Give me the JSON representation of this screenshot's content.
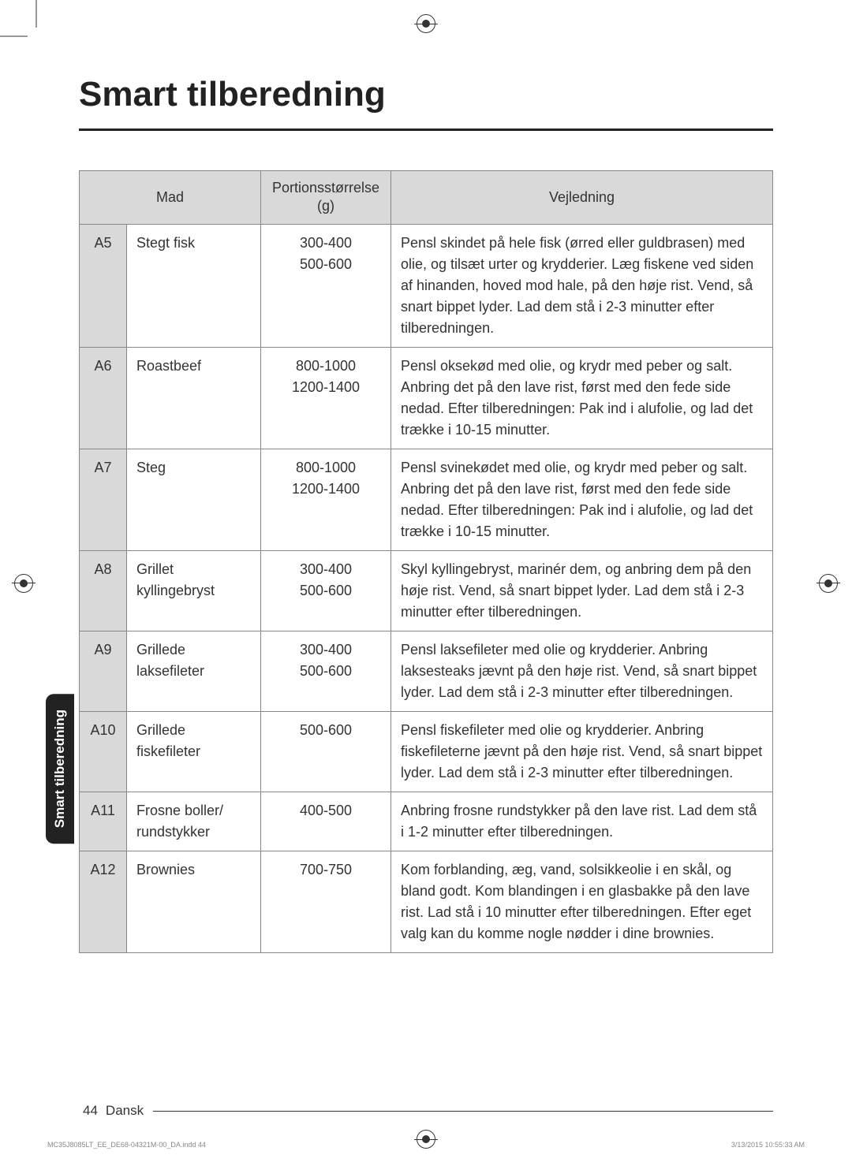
{
  "title": "Smart tilberedning",
  "sideTab": "Smart tilberedning",
  "table": {
    "headers": {
      "food": "Mad",
      "portion": "Portionsstørrelse (g)",
      "guidance": "Vejledning"
    },
    "rows": [
      {
        "code": "A5",
        "food": "Stegt fisk",
        "portion": "300-400\n500-600",
        "guidance": "Pensl skindet på hele fisk (ørred eller guldbrasen) med olie, og tilsæt urter og krydderier. Læg fiskene ved siden af hinanden, hoved mod hale, på den høje rist. Vend, så snart bippet lyder. Lad dem stå i 2-3 minutter efter tilberedningen."
      },
      {
        "code": "A6",
        "food": "Roastbeef",
        "portion": "800-1000\n1200-1400",
        "guidance": "Pensl oksekød med olie, og krydr med peber og salt. Anbring det på den lave rist, først med den fede side nedad. Efter tilberedningen: Pak ind i alufolie, og lad det trække i 10-15 minutter."
      },
      {
        "code": "A7",
        "food": "Steg",
        "portion": "800-1000\n1200-1400",
        "guidance": "Pensl svinekødet med olie, og krydr med peber og salt. Anbring det på den lave rist, først med den fede side nedad. Efter tilberedningen: Pak ind i alufolie, og lad det trække i 10-15 minutter."
      },
      {
        "code": "A8",
        "food": "Grillet kyllingebryst",
        "portion": "300-400\n500-600",
        "guidance": "Skyl kyllingebryst, marinér dem, og anbring dem på den høje rist. Vend, så snart bippet lyder. Lad dem stå i 2-3 minutter efter tilberedningen."
      },
      {
        "code": "A9",
        "food": "Grillede laksefileter",
        "portion": "300-400\n500-600",
        "guidance": "Pensl laksefileter med olie og krydderier. Anbring laksesteaks jævnt på den høje rist. Vend, så snart bippet lyder. Lad dem stå i 2-3 minutter efter tilberedningen."
      },
      {
        "code": "A10",
        "food": "Grillede fiskefileter",
        "portion": "500-600",
        "guidance": "Pensl fiskefileter med olie og krydderier. Anbring fiskefileterne jævnt på den høje rist. Vend, så snart bippet lyder. Lad dem stå i 2-3 minutter efter tilberedningen."
      },
      {
        "code": "A11",
        "food": "Frosne boller/ rundstykker",
        "portion": "400-500",
        "guidance": "Anbring frosne rundstykker på den lave rist. Lad dem stå i 1-2 minutter efter tilberedningen."
      },
      {
        "code": "A12",
        "food": "Brownies",
        "portion": "700-750",
        "guidance": "Kom forblanding, æg, vand, solsikkeolie i en skål, og bland godt. Kom blandingen i en glasbakke på den lave rist. Lad stå i 10 minutter efter tilberedningen. Efter eget valg kan du komme nogle nødder i dine brownies."
      }
    ]
  },
  "footer": {
    "pageNumber": "44",
    "language": "Dansk"
  },
  "printMeta": {
    "file": "MC35J8085LT_EE_DE68-04321M-00_DA.indd   44",
    "timestamp": "3/13/2015   10:55:33 AM"
  }
}
